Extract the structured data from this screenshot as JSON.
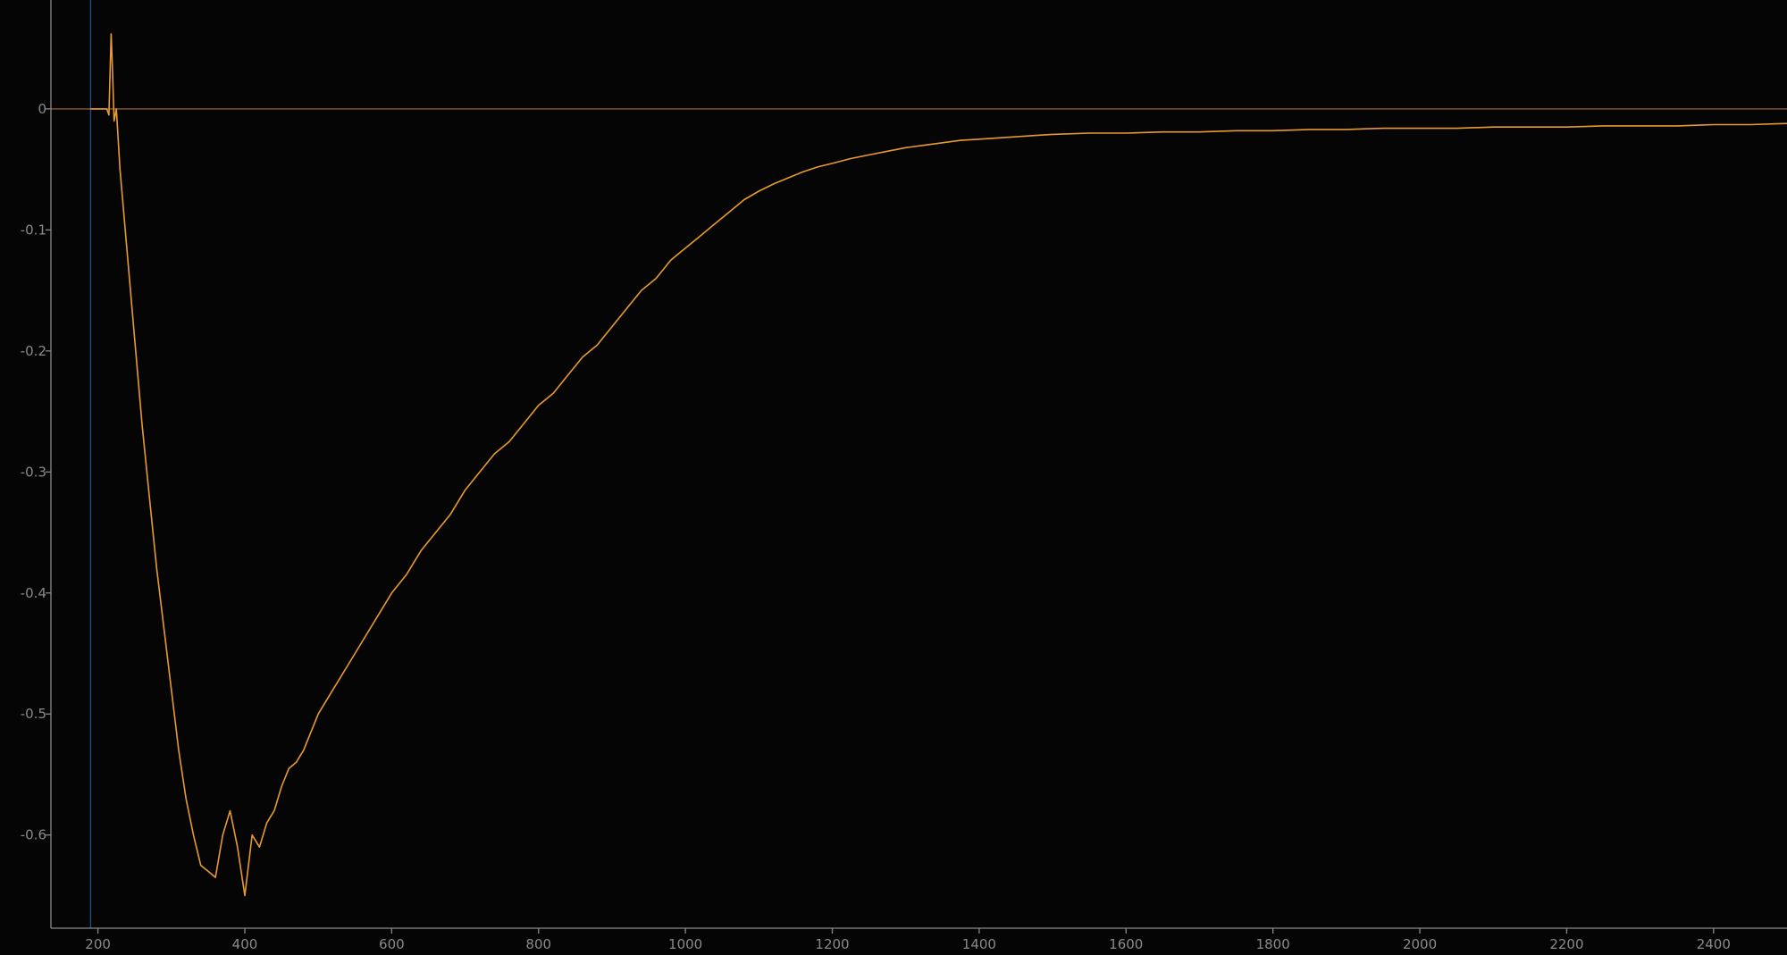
{
  "chart_data": {
    "type": "line",
    "title": "",
    "xlabel": "",
    "ylabel": "",
    "xlim": [
      136,
      2500
    ],
    "ylim": [
      -0.677,
      0.09
    ],
    "grid": false,
    "x_ticks": [
      200,
      400,
      600,
      800,
      1000,
      1200,
      1400,
      1600,
      1800,
      2000,
      2200,
      2400
    ],
    "x_tick_labels": [
      "200",
      "400",
      "600",
      "800",
      "1000",
      "1200",
      "1400",
      "1600",
      "1800",
      "2000",
      "2200",
      "2400"
    ],
    "y_ticks": [
      0,
      -0.1,
      -0.2,
      -0.3,
      -0.4,
      -0.5,
      -0.6
    ],
    "y_tick_labels": [
      "0",
      "-0.1",
      "-0.2",
      "-0.3",
      "-0.4",
      "-0.5",
      "-0.6"
    ],
    "reference_lines": [
      {
        "orientation": "horizontal",
        "value": 0,
        "color": "#8a5a2a"
      },
      {
        "orientation": "vertical",
        "value": 190,
        "color": "#1f4f8a"
      }
    ],
    "series": [
      {
        "color": "#e89a2e",
        "x": [
          190,
          205,
          212,
          215,
          218,
          220,
          222,
          225,
          230,
          240,
          250,
          260,
          270,
          280,
          290,
          300,
          310,
          320,
          330,
          340,
          350,
          360,
          370,
          380,
          390,
          400,
          410,
          420,
          430,
          440,
          450,
          460,
          470,
          480,
          500,
          520,
          540,
          560,
          580,
          600,
          620,
          640,
          660,
          680,
          700,
          720,
          740,
          760,
          780,
          800,
          820,
          840,
          860,
          880,
          900,
          920,
          940,
          960,
          980,
          1000,
          1020,
          1040,
          1060,
          1080,
          1100,
          1120,
          1140,
          1160,
          1180,
          1200,
          1225,
          1250,
          1275,
          1300,
          1325,
          1350,
          1375,
          1400,
          1425,
          1450,
          1475,
          1500,
          1550,
          1600,
          1650,
          1700,
          1750,
          1800,
          1850,
          1900,
          1950,
          2000,
          2050,
          2100,
          2150,
          2200,
          2250,
          2300,
          2350,
          2400,
          2450,
          2500
        ],
        "y": [
          0.0,
          0.0,
          0.0,
          -0.005,
          0.062,
          0.03,
          -0.01,
          0.0,
          -0.05,
          -0.12,
          -0.19,
          -0.26,
          -0.32,
          -0.38,
          -0.43,
          -0.48,
          -0.53,
          -0.57,
          -0.6,
          -0.625,
          -0.63,
          -0.635,
          -0.6,
          -0.58,
          -0.61,
          -0.65,
          -0.6,
          -0.61,
          -0.59,
          -0.58,
          -0.56,
          -0.545,
          -0.54,
          -0.53,
          -0.5,
          -0.48,
          -0.46,
          -0.44,
          -0.42,
          -0.4,
          -0.385,
          -0.365,
          -0.35,
          -0.335,
          -0.315,
          -0.3,
          -0.285,
          -0.275,
          -0.26,
          -0.245,
          -0.235,
          -0.22,
          -0.205,
          -0.195,
          -0.18,
          -0.165,
          -0.15,
          -0.14,
          -0.125,
          -0.115,
          -0.105,
          -0.095,
          -0.085,
          -0.075,
          -0.068,
          -0.062,
          -0.057,
          -0.052,
          -0.048,
          -0.045,
          -0.041,
          -0.038,
          -0.035,
          -0.032,
          -0.03,
          -0.028,
          -0.026,
          -0.025,
          -0.024,
          -0.023,
          -0.022,
          -0.021,
          -0.02,
          -0.02,
          -0.019,
          -0.019,
          -0.018,
          -0.018,
          -0.017,
          -0.017,
          -0.016,
          -0.016,
          -0.016,
          -0.015,
          -0.015,
          -0.015,
          -0.014,
          -0.014,
          -0.014,
          -0.013,
          -0.013,
          -0.012
        ]
      }
    ]
  }
}
